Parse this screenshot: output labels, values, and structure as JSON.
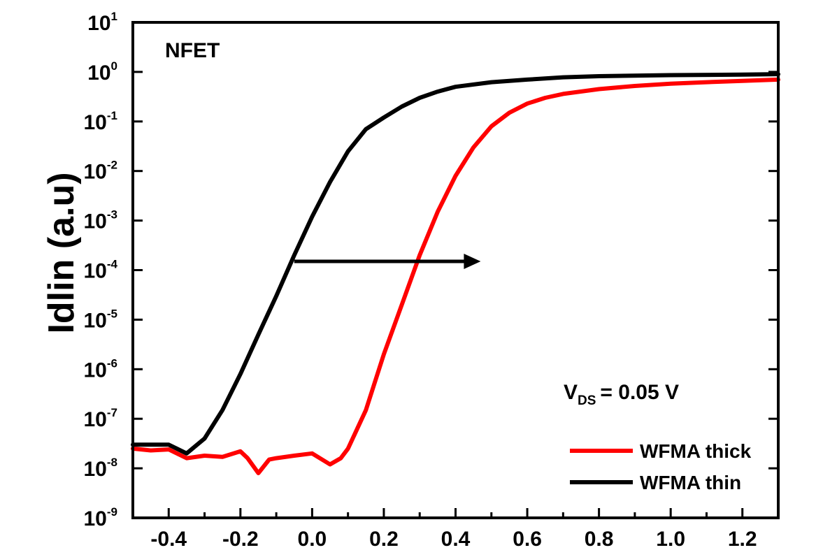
{
  "chart_data": {
    "type": "line",
    "xlabel": "",
    "ylabel": "Idlin (a.u)",
    "x_scale": "linear",
    "y_scale": "log",
    "xlim": [
      -0.5,
      1.3
    ],
    "ylim_exp": [
      -9,
      1
    ],
    "x_ticks": [
      "-0.4",
      "-0.2",
      "0.0",
      "0.2",
      "0.4",
      "0.6",
      "0.8",
      "1.0",
      "1.2"
    ],
    "y_ticks": [
      {
        "base": "10",
        "exp": "1"
      },
      {
        "base": "10",
        "exp": "0"
      },
      {
        "base": "10",
        "exp": "-1"
      },
      {
        "base": "10",
        "exp": "-2"
      },
      {
        "base": "10",
        "exp": "-3"
      },
      {
        "base": "10",
        "exp": "-4"
      },
      {
        "base": "10",
        "exp": "-5"
      },
      {
        "base": "10",
        "exp": "-6"
      },
      {
        "base": "10",
        "exp": "-7"
      },
      {
        "base": "10",
        "exp": "-8"
      },
      {
        "base": "10",
        "exp": "-9"
      }
    ],
    "annotations": {
      "device": "NFET",
      "bias_main": "V",
      "bias_sub": "DS",
      "bias_value": "= 0.05 V",
      "arrow": {
        "from": [
          -0.05,
          0.00015
        ],
        "to": [
          0.47,
          0.00015
        ]
      }
    },
    "legend_position": "bottom-right",
    "series": [
      {
        "name": "WFMA thick",
        "color": "#ff0000",
        "x": [
          -0.5,
          -0.45,
          -0.4,
          -0.35,
          -0.3,
          -0.25,
          -0.2,
          -0.18,
          -0.15,
          -0.12,
          -0.1,
          -0.05,
          0.0,
          0.05,
          0.08,
          0.1,
          0.15,
          0.2,
          0.25,
          0.3,
          0.35,
          0.4,
          0.45,
          0.5,
          0.55,
          0.6,
          0.65,
          0.7,
          0.8,
          0.9,
          1.0,
          1.1,
          1.2,
          1.3
        ],
        "y": [
          2.5e-08,
          2.3e-08,
          2.4e-08,
          1.6e-08,
          1.8e-08,
          1.7e-08,
          2.2e-08,
          1.6e-08,
          8e-09,
          1.5e-08,
          1.6e-08,
          1.8e-08,
          2e-08,
          1.2e-08,
          1.6e-08,
          2.5e-08,
          1.5e-07,
          2e-06,
          2e-05,
          0.0002,
          0.0015,
          0.008,
          0.03,
          0.08,
          0.15,
          0.23,
          0.3,
          0.36,
          0.45,
          0.52,
          0.58,
          0.62,
          0.66,
          0.7
        ]
      },
      {
        "name": "WFMA thin",
        "color": "#000000",
        "x": [
          -0.5,
          -0.45,
          -0.4,
          -0.35,
          -0.3,
          -0.25,
          -0.2,
          -0.15,
          -0.1,
          -0.05,
          0.0,
          0.05,
          0.1,
          0.15,
          0.2,
          0.25,
          0.3,
          0.35,
          0.4,
          0.5,
          0.6,
          0.7,
          0.8,
          1.0,
          1.2,
          1.3
        ],
        "y": [
          3e-08,
          3e-08,
          3e-08,
          2e-08,
          4e-08,
          1.5e-07,
          8e-07,
          5e-06,
          3e-05,
          0.0002,
          0.0012,
          0.006,
          0.025,
          0.07,
          0.12,
          0.2,
          0.3,
          0.4,
          0.5,
          0.62,
          0.7,
          0.78,
          0.82,
          0.86,
          0.88,
          0.9
        ]
      }
    ]
  }
}
